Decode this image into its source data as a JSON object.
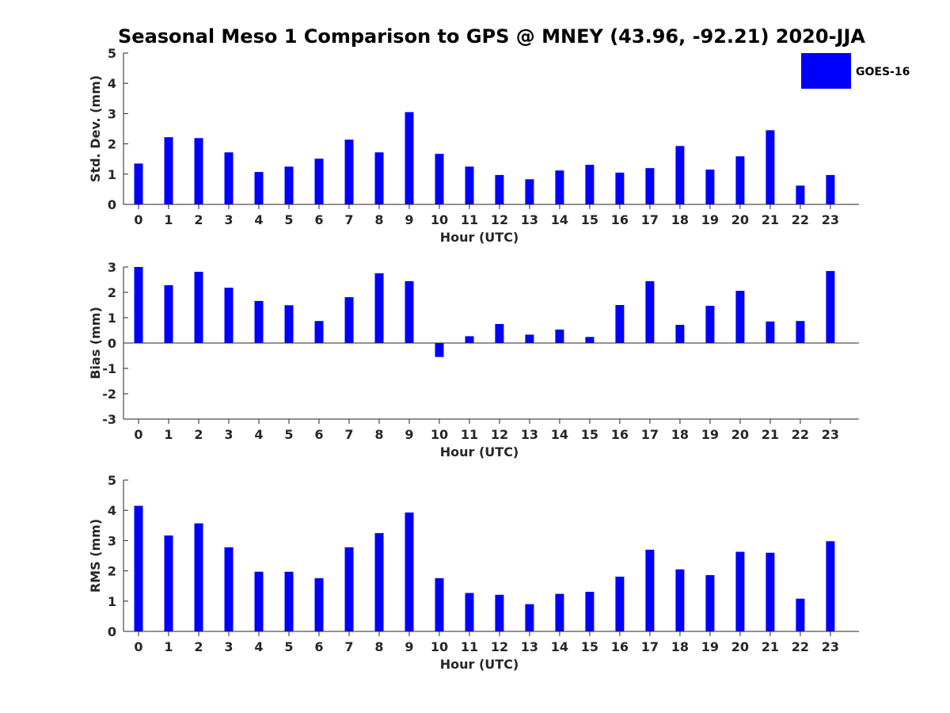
{
  "title": "Seasonal Meso 1 Comparison to GPS @ MNEY (43.96, -92.21) 2020-JJA",
  "colors": {
    "bar": "#0000ff",
    "axis": "#262626"
  },
  "legend": {
    "label": "GOES-16",
    "position": "top-right"
  },
  "chart_data": [
    {
      "type": "bar",
      "name": "std-dev",
      "xlabel": "Hour (UTC)",
      "ylabel": "Std. Dev. (mm)",
      "ylim": [
        0,
        5
      ],
      "yticks": [
        "0",
        "1",
        "2",
        "3",
        "4",
        "5"
      ],
      "categories": [
        "0",
        "1",
        "2",
        "3",
        "4",
        "5",
        "6",
        "7",
        "8",
        "9",
        "10",
        "11",
        "12",
        "13",
        "14",
        "15",
        "16",
        "17",
        "18",
        "19",
        "20",
        "21",
        "22",
        "23"
      ],
      "series": [
        {
          "name": "GOES-16",
          "values": [
            1.35,
            2.22,
            2.19,
            1.72,
            1.07,
            1.25,
            1.51,
            2.14,
            1.72,
            3.05,
            1.67,
            1.25,
            0.97,
            0.83,
            1.12,
            1.31,
            1.05,
            1.2,
            1.93,
            1.15,
            1.59,
            2.45,
            0.62,
            0.97
          ]
        }
      ]
    },
    {
      "type": "bar",
      "name": "bias",
      "xlabel": "Hour (UTC)",
      "ylabel": "Bias (mm)",
      "ylim": [
        -3,
        3
      ],
      "yticks": [
        "-3",
        "-2",
        "-1",
        "0",
        "1",
        "2",
        "3"
      ],
      "categories": [
        "0",
        "1",
        "2",
        "3",
        "4",
        "5",
        "6",
        "7",
        "8",
        "9",
        "10",
        "11",
        "12",
        "13",
        "14",
        "15",
        "16",
        "17",
        "18",
        "19",
        "20",
        "21",
        "22",
        "23"
      ],
      "series": [
        {
          "name": "GOES-16",
          "values": [
            3.0,
            2.28,
            2.81,
            2.18,
            1.66,
            1.49,
            0.87,
            1.81,
            2.75,
            2.44,
            -0.55,
            0.27,
            0.75,
            0.33,
            0.53,
            0.24,
            1.5,
            2.44,
            0.72,
            1.47,
            2.06,
            0.85,
            0.87,
            2.84
          ]
        }
      ]
    },
    {
      "type": "bar",
      "name": "rms",
      "xlabel": "Hour (UTC)",
      "ylabel": "RMS (mm)",
      "ylim": [
        0,
        5
      ],
      "yticks": [
        "0",
        "1",
        "2",
        "3",
        "4",
        "5"
      ],
      "categories": [
        "0",
        "1",
        "2",
        "3",
        "4",
        "5",
        "6",
        "7",
        "8",
        "9",
        "10",
        "11",
        "12",
        "13",
        "14",
        "15",
        "16",
        "17",
        "18",
        "19",
        "20",
        "21",
        "22",
        "23"
      ],
      "series": [
        {
          "name": "GOES-16",
          "values": [
            4.15,
            3.17,
            3.57,
            2.78,
            1.97,
            1.97,
            1.76,
            2.78,
            3.25,
            3.93,
            1.76,
            1.27,
            1.21,
            0.9,
            1.24,
            1.31,
            1.81,
            2.7,
            2.05,
            1.86,
            2.63,
            2.6,
            1.08,
            2.98
          ]
        }
      ]
    }
  ]
}
